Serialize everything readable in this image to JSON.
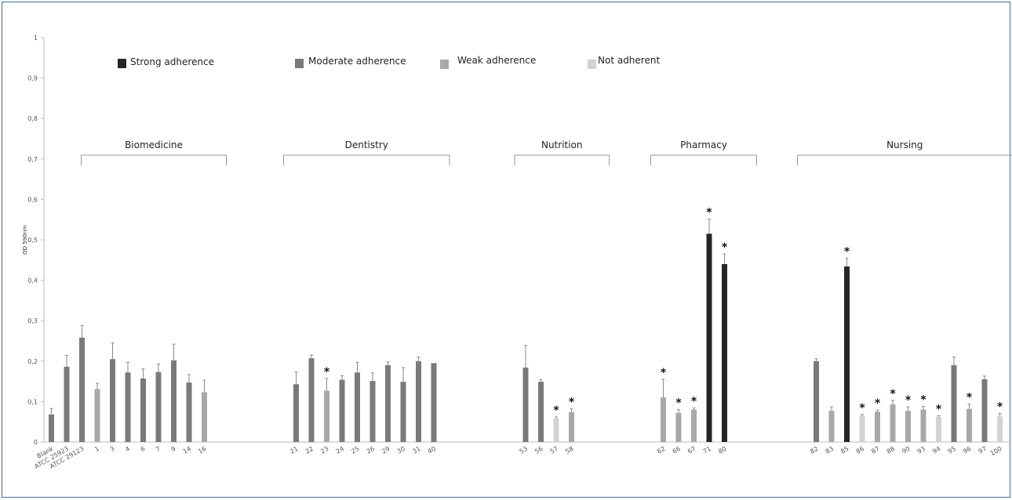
{
  "chart_data": {
    "type": "bar",
    "ylabel": "OD 590nm",
    "ylim": [
      0,
      1
    ],
    "yticks": [
      "0",
      "0,1",
      "0,2",
      "0,3",
      "0,4",
      "0,5",
      "0,6",
      "0,7",
      "0,8",
      "0,9",
      "1"
    ],
    "legend": [
      {
        "label": "Strong adherence",
        "color": "#262626"
      },
      {
        "label": "Moderate adherence",
        "color": "#7a7a7a"
      },
      {
        "label": "Weak adherence",
        "color": "#a8a8a8"
      },
      {
        "label": "Not adherent",
        "color": "#d2d2d2"
      }
    ],
    "groups": [
      {
        "label": "Biomedicine",
        "from": "ATCC 29123",
        "to": "16"
      },
      {
        "label": "Dentistry",
        "from": "21",
        "to": "40"
      },
      {
        "label": "Nutrition",
        "from": "53",
        "to": "58"
      },
      {
        "label": "Pharmacy",
        "from": "62",
        "to": "80"
      },
      {
        "label": "Nursing",
        "from": "82",
        "to": "100"
      }
    ],
    "bars": [
      {
        "label": "Blank",
        "value": 0.068,
        "error": 0.015,
        "class": "moderate",
        "star": false,
        "slot": 0
      },
      {
        "label": "ATCC 25923",
        "value": 0.186,
        "error": 0.028,
        "class": "moderate",
        "star": false,
        "slot": 1
      },
      {
        "label": "ATCC 29123",
        "value": 0.258,
        "error": 0.03,
        "class": "moderate",
        "star": false,
        "slot": 2
      },
      {
        "label": "1",
        "value": 0.131,
        "error": 0.014,
        "class": "weak",
        "star": false,
        "slot": 3
      },
      {
        "label": "3",
        "value": 0.205,
        "error": 0.04,
        "class": "moderate",
        "star": false,
        "slot": 4
      },
      {
        "label": "4",
        "value": 0.172,
        "error": 0.025,
        "class": "moderate",
        "star": false,
        "slot": 5
      },
      {
        "label": "6",
        "value": 0.157,
        "error": 0.024,
        "class": "moderate",
        "star": false,
        "slot": 6
      },
      {
        "label": "7",
        "value": 0.173,
        "error": 0.02,
        "class": "moderate",
        "star": false,
        "slot": 7
      },
      {
        "label": "9",
        "value": 0.202,
        "error": 0.04,
        "class": "moderate",
        "star": false,
        "slot": 8
      },
      {
        "label": "14",
        "value": 0.147,
        "error": 0.02,
        "class": "moderate",
        "star": false,
        "slot": 9
      },
      {
        "label": "16",
        "value": 0.123,
        "error": 0.03,
        "class": "weak",
        "star": false,
        "slot": 10
      },
      {
        "label": "21",
        "value": 0.143,
        "error": 0.03,
        "class": "moderate",
        "star": false,
        "slot": 16
      },
      {
        "label": "22",
        "value": 0.207,
        "error": 0.008,
        "class": "moderate",
        "star": false,
        "slot": 17
      },
      {
        "label": "23",
        "value": 0.127,
        "error": 0.03,
        "class": "weak",
        "star": true,
        "slot": 18
      },
      {
        "label": "24",
        "value": 0.154,
        "error": 0.01,
        "class": "moderate",
        "star": false,
        "slot": 19
      },
      {
        "label": "25",
        "value": 0.172,
        "error": 0.025,
        "class": "moderate",
        "star": false,
        "slot": 20
      },
      {
        "label": "26",
        "value": 0.151,
        "error": 0.02,
        "class": "moderate",
        "star": false,
        "slot": 21
      },
      {
        "label": "29",
        "value": 0.19,
        "error": 0.008,
        "class": "moderate",
        "star": false,
        "slot": 22
      },
      {
        "label": "30",
        "value": 0.149,
        "error": 0.035,
        "class": "moderate",
        "star": false,
        "slot": 23
      },
      {
        "label": "31",
        "value": 0.2,
        "error": 0.01,
        "class": "moderate",
        "star": false,
        "slot": 24
      },
      {
        "label": "40",
        "value": 0.195,
        "error": 0.0,
        "class": "moderate",
        "star": false,
        "slot": 25
      },
      {
        "label": "53",
        "value": 0.184,
        "error": 0.055,
        "class": "moderate",
        "star": false,
        "slot": 31
      },
      {
        "label": "56",
        "value": 0.149,
        "error": 0.005,
        "class": "moderate",
        "star": false,
        "slot": 32
      },
      {
        "label": "57",
        "value": 0.058,
        "error": 0.004,
        "class": "not",
        "star": true,
        "slot": 33
      },
      {
        "label": "58",
        "value": 0.074,
        "error": 0.008,
        "class": "weak",
        "star": true,
        "slot": 34
      },
      {
        "label": "62",
        "value": 0.11,
        "error": 0.045,
        "class": "weak",
        "star": true,
        "slot": 40
      },
      {
        "label": "66",
        "value": 0.072,
        "error": 0.008,
        "class": "weak",
        "star": true,
        "slot": 41
      },
      {
        "label": "67",
        "value": 0.08,
        "error": 0.004,
        "class": "weak",
        "star": true,
        "slot": 42
      },
      {
        "label": "71",
        "value": 0.515,
        "error": 0.036,
        "class": "strong",
        "star": true,
        "slot": 43
      },
      {
        "label": "80",
        "value": 0.44,
        "error": 0.025,
        "class": "strong",
        "star": true,
        "slot": 44
      },
      {
        "label": "82",
        "value": 0.2,
        "error": 0.006,
        "class": "moderate",
        "star": false,
        "slot": 50
      },
      {
        "label": "83",
        "value": 0.077,
        "error": 0.01,
        "class": "weak",
        "star": false,
        "slot": 51
      },
      {
        "label": "85",
        "value": 0.434,
        "error": 0.02,
        "class": "strong",
        "star": true,
        "slot": 52
      },
      {
        "label": "86",
        "value": 0.065,
        "error": 0.003,
        "class": "not",
        "star": true,
        "slot": 53
      },
      {
        "label": "87",
        "value": 0.075,
        "error": 0.004,
        "class": "weak",
        "star": true,
        "slot": 54
      },
      {
        "label": "88",
        "value": 0.093,
        "error": 0.01,
        "class": "weak",
        "star": true,
        "slot": 55
      },
      {
        "label": "90",
        "value": 0.077,
        "error": 0.01,
        "class": "weak",
        "star": true,
        "slot": 56
      },
      {
        "label": "93",
        "value": 0.08,
        "error": 0.008,
        "class": "weak",
        "star": true,
        "slot": 57
      },
      {
        "label": "94",
        "value": 0.062,
        "error": 0.003,
        "class": "not",
        "star": true,
        "slot": 58
      },
      {
        "label": "95",
        "value": 0.19,
        "error": 0.02,
        "class": "moderate",
        "star": false,
        "slot": 59
      },
      {
        "label": "96",
        "value": 0.082,
        "error": 0.012,
        "class": "weak",
        "star": true,
        "slot": 60
      },
      {
        "label": "97",
        "value": 0.155,
        "error": 0.008,
        "class": "moderate",
        "star": false,
        "slot": 61
      },
      {
        "label": "100",
        "value": 0.063,
        "error": 0.008,
        "class": "not",
        "star": true,
        "slot": 62
      }
    ]
  }
}
